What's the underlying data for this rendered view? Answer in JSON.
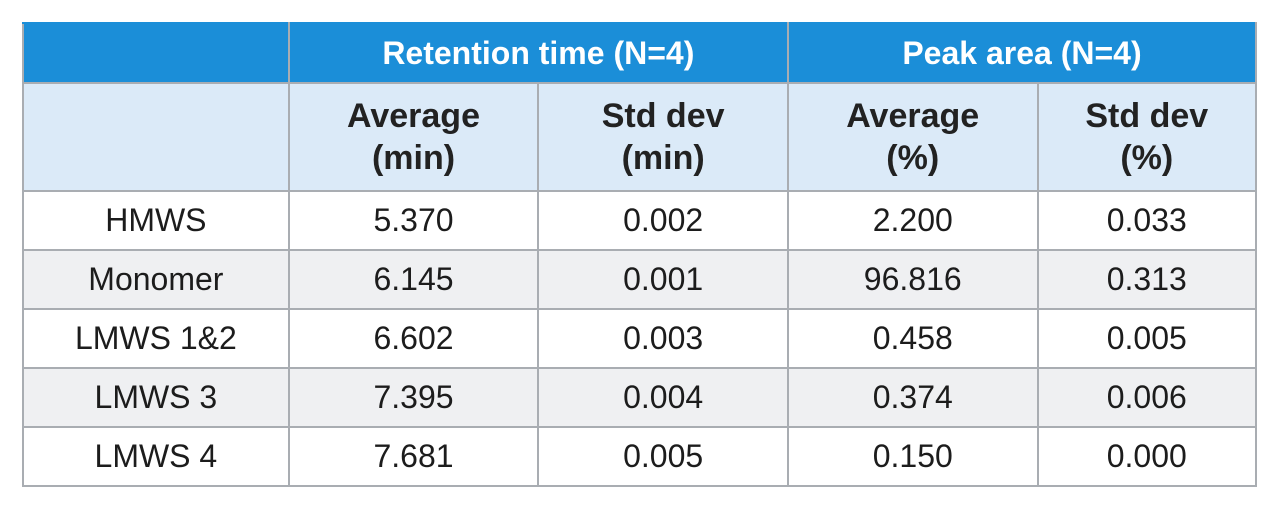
{
  "table": {
    "group_headers": {
      "retention": "Retention time (N=4)",
      "peak": "Peak area (N=4)"
    },
    "sub_headers": [
      {
        "line1": "Average",
        "line2": "(min)"
      },
      {
        "line1": "Std dev",
        "line2": "(min)"
      },
      {
        "line1": "Average",
        "line2": "(%)"
      },
      {
        "line1": "Std dev",
        "line2": "(%)"
      }
    ],
    "rows": [
      {
        "label": "HMWS",
        "rt_avg": "5.370",
        "rt_sd": "0.002",
        "pa_avg": "2.200",
        "pa_sd": "0.033"
      },
      {
        "label": "Monomer",
        "rt_avg": "6.145",
        "rt_sd": "0.001",
        "pa_avg": "96.816",
        "pa_sd": "0.313"
      },
      {
        "label": "LMWS 1&2",
        "rt_avg": "6.602",
        "rt_sd": "0.003",
        "pa_avg": "0.458",
        "pa_sd": "0.005"
      },
      {
        "label": "LMWS 3",
        "rt_avg": "7.395",
        "rt_sd": "0.004",
        "pa_avg": "0.374",
        "pa_sd": "0.006"
      },
      {
        "label": "LMWS 4",
        "rt_avg": "7.681",
        "rt_sd": "0.005",
        "pa_avg": "0.150",
        "pa_sd": "0.000"
      }
    ]
  }
}
